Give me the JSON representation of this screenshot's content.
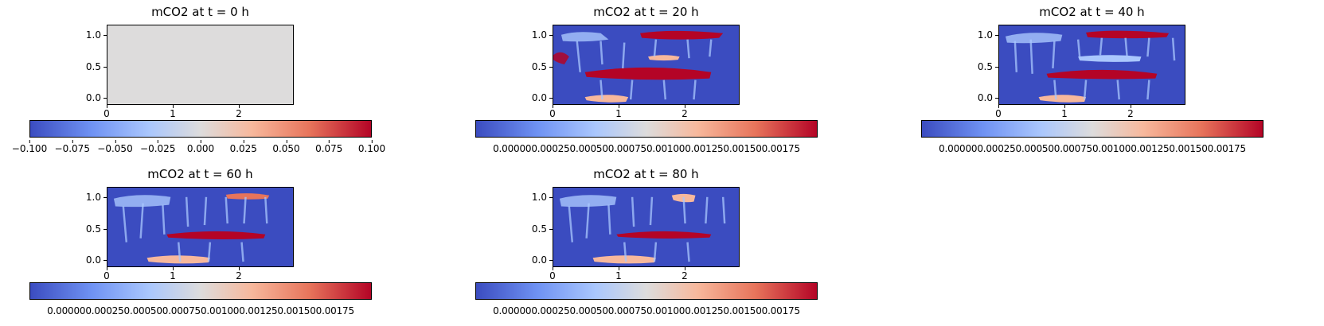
{
  "panels": [
    {
      "title": "mCO2 at t = 0 h",
      "cbar_labels": [
        "−0.100",
        "−0.075",
        "−0.050",
        "−0.025",
        "0.000",
        "0.025",
        "0.050",
        "0.075",
        "0.100"
      ]
    },
    {
      "title": "mCO2 at t = 20 h",
      "cbar_text": "0.000000.000250.000500.000750.001000.001250.001500.00175"
    },
    {
      "title": "mCO2 at t = 40 h",
      "cbar_text": "0.000000.000250.000500.000750.001000.001250.001500.00175"
    },
    {
      "title": "mCO2 at t = 60 h",
      "cbar_text": "0.000000.000250.000500.000750.001000.001250.001500.00175"
    },
    {
      "title": "mCO2 at t = 80 h",
      "cbar_text": "0.000000.000250.000500.000750.001000.001250.001500.00175"
    }
  ],
  "axes": {
    "yticks": [
      "1.0",
      "0.5",
      "0.0"
    ],
    "xticks": [
      "0",
      "1",
      "2"
    ]
  },
  "chart_data": {
    "type": "heatmap",
    "colormap": "coolwarm",
    "variable": "mCO2",
    "times_h": [
      0,
      20,
      40,
      60,
      80
    ],
    "xlim": [
      0,
      2.8
    ],
    "ylim": [
      0,
      1.2
    ],
    "colorbar_ranges": [
      [
        -0.1,
        0.1
      ],
      [
        0,
        0.0019
      ],
      [
        0,
        0.0019
      ],
      [
        0,
        0.0019
      ],
      [
        0,
        0.0019
      ]
    ],
    "colorbar_ticks_t0": [
      -0.1,
      -0.075,
      -0.05,
      -0.025,
      0,
      0.025,
      0.05,
      0.075,
      0.1
    ],
    "colorbar_ticks": [
      0,
      0.00025,
      0.0005,
      0.00075,
      0.001,
      0.00125,
      0.0015,
      0.00175
    ],
    "colors": {
      "low": "#3b4cc0",
      "mid": "#dddcdc",
      "high": "#b40426"
    }
  }
}
